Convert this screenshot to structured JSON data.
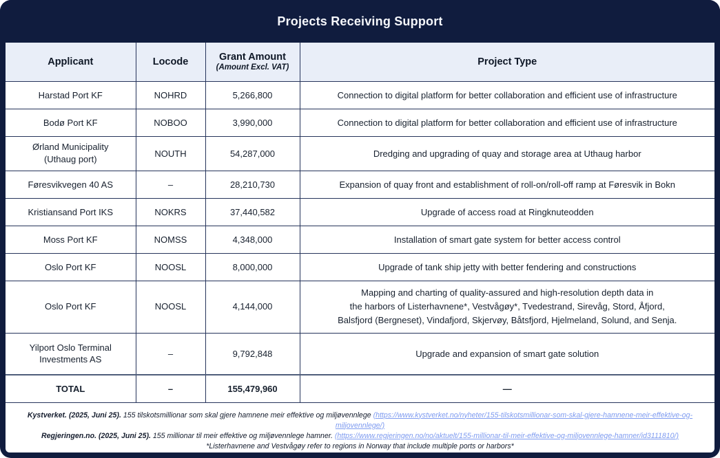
{
  "title": "Projects Receiving Support",
  "colors": {
    "navy": "#101c3e",
    "header_row_bg": "#e9eef8",
    "cell_border": "#25335a",
    "total_divider": "#4e5d7a",
    "link": "#7e9bf0",
    "title_text": "#f5f7fb"
  },
  "table": {
    "headers": {
      "applicant": "Applicant",
      "locode": "Locode",
      "grant_amount": "Grant Amount",
      "grant_amount_sub": "(Amount Excl. VAT)",
      "project_type": "Project Type"
    },
    "rows": [
      {
        "applicant": "Harstad Port KF",
        "locode": "NOHRD",
        "grant": "5,266,800",
        "project": "Connection to digital platform for better collaboration and efficient use of infrastructure"
      },
      {
        "applicant": "Bodø Port KF",
        "locode": "NOBOO",
        "grant": "3,990,000",
        "project": "Connection to digital platform for better collaboration and efficient use of infrastructure"
      },
      {
        "applicant": "Ørland Municipality\n(Uthaug port)",
        "locode": "NOUTH",
        "grant": "54,287,000",
        "project": "Dredging and upgrading of quay and storage area at Uthaug harbor"
      },
      {
        "applicant": "Føresvikvegen 40 AS",
        "locode": "–",
        "grant": "28,210,730",
        "project": "Expansion of quay front and establishment of roll-on/roll-off ramp at Føresvik in Bokn"
      },
      {
        "applicant": "Kristiansand Port IKS",
        "locode": "NOKRS",
        "grant": "37,440,582",
        "project": "Upgrade of access road at Ringknuteodden"
      },
      {
        "applicant": "Moss Port KF",
        "locode": "NOMSS",
        "grant": "4,348,000",
        "project": "Installation of smart gate system for better access control"
      },
      {
        "applicant": "Oslo Port KF",
        "locode": "NOOSL",
        "grant": "8,000,000",
        "project": "Upgrade of tank ship jetty with better fendering and constructions"
      },
      {
        "applicant": "Oslo Port KF",
        "locode": "NOOSL",
        "grant": "4,144,000",
        "project": "Mapping and charting of quality-assured and high-resolution depth data in\nthe harbors of Listerhavnene*, Vestvågøy*, Tvedestrand, Sirevåg, Stord, Åfjord,\nBalsfjord (Bergneset), Vindafjord, Skjervøy, Båtsfjord, Hjelmeland, Solund, and Senja."
      },
      {
        "applicant": "Yilport Oslo Terminal\nInvestments AS",
        "locode": "–",
        "grant": "9,792,848",
        "project": "Upgrade and expansion of smart gate solution"
      }
    ],
    "total": {
      "applicant": "TOTAL",
      "locode": "–",
      "grant": "155,479,960",
      "project": "—"
    }
  },
  "footer": {
    "line1_source": "Kystverket. (2025, Juni 25).",
    "line1_text": " 155 tilskotsmillionar som skal gjere hamnene meir effektive og miljøvennlege ",
    "line1_link": "(https://www.kystverket.no/nyheter/155-tilskotsmillionar-som-skal-gjere-hamnene-meir-effektive-og-miljovennlege/)",
    "line2_source": "Regjeringen.no. (2025, Juni 25).",
    "line2_text": " 155 millionar til meir effektive og miljøvennlege hamner. ",
    "line2_link": "(https://www.regjeringen.no/no/aktuelt/155-millionar-til-meir-effektive-og-miljovennlege-hamner/id3111810/)",
    "line3": "*Listerhavnene and Vestvågøy refer to regions in Norway that include multiple ports or harbors*"
  }
}
